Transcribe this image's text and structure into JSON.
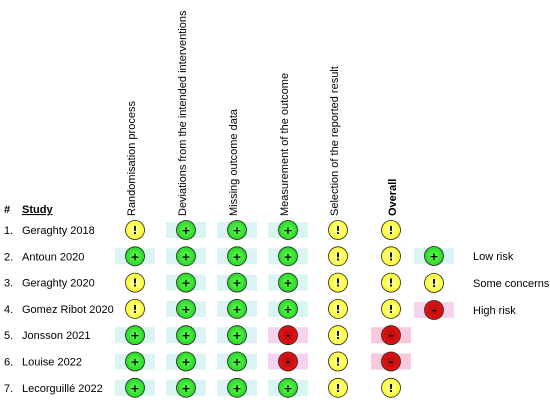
{
  "headers": {
    "number": "#",
    "study": "Study",
    "domains": [
      "Randomisation process",
      "Deviations from the intended interventions",
      "Missing outcome data",
      "Measurement of the outcome",
      "Selection of the reported result",
      "Overall"
    ]
  },
  "studies": [
    {
      "number": "1.",
      "name": "Geraghty 2018",
      "ratings": [
        "some",
        "low",
        "low",
        "low",
        "some",
        "some"
      ]
    },
    {
      "number": "2.",
      "name": "Antoun 2020",
      "ratings": [
        "low",
        "low",
        "low",
        "low",
        "some",
        "some"
      ]
    },
    {
      "number": "3.",
      "name": "Geraghty 2020",
      "ratings": [
        "some",
        "low",
        "low",
        "low",
        "some",
        "some"
      ]
    },
    {
      "number": "4.",
      "name": "Gomez Ribot 2020",
      "ratings": [
        "some",
        "low",
        "low",
        "low",
        "some",
        "some"
      ]
    },
    {
      "number": "5.",
      "name": "Jonsson 2021",
      "ratings": [
        "low",
        "low",
        "low",
        "high",
        "some",
        "high"
      ]
    },
    {
      "number": "6.",
      "name": "Louise 2022",
      "ratings": [
        "low",
        "low",
        "low",
        "high",
        "some",
        "high"
      ]
    },
    {
      "number": "7.",
      "name": "Lecorguillé 2022",
      "ratings": [
        "low",
        "low",
        "low",
        "low",
        "some",
        "some"
      ]
    }
  ],
  "legend": [
    {
      "key": "low",
      "label": "Low risk"
    },
    {
      "key": "some",
      "label": "Some concerns"
    },
    {
      "key": "high",
      "label": "High risk"
    }
  ],
  "symbols": {
    "low": "+",
    "some": "!",
    "high": "-"
  },
  "colors": {
    "low": "#22dd22",
    "some": "#ffff22",
    "high": "#ee1111",
    "low_band": "#d9f4f2",
    "high_band": "#f7d4ee",
    "high_overall_band": "#f9c8dc"
  }
}
